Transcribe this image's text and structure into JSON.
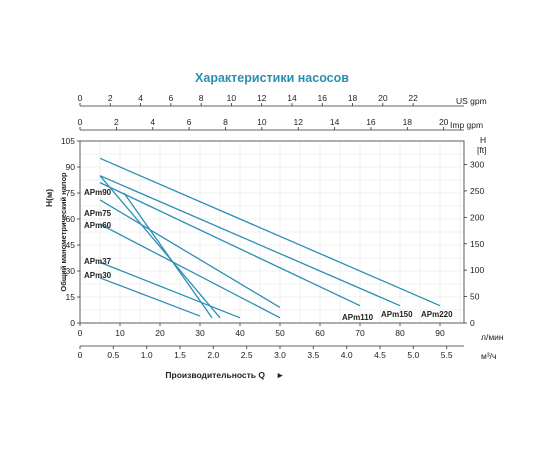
{
  "chart_data": {
    "type": "line",
    "title": "Характеристики насосов",
    "xlabel": "Производительность Q",
    "ylabel": "Общий манометрический напор",
    "ylabel_unit": "H(м)",
    "x_unit": "л/мин",
    "x_m3h_unit": "м³/ч",
    "us_gpm_unit": "US gpm",
    "imp_gpm_unit": "Imp gpm",
    "h_ft_unit": "H",
    "h_ft_unit2": "[ft]",
    "xlim": [
      0,
      96
    ],
    "ylim": [
      0,
      105
    ],
    "grid": true,
    "x_ticks": [
      "0",
      "10",
      "20",
      "30",
      "40",
      "50",
      "60",
      "70",
      "80",
      "90"
    ],
    "y_ticks": [
      "0",
      "15",
      "30",
      "45",
      "60",
      "75",
      "90",
      "105"
    ],
    "ft_ticks": [
      "0",
      "50",
      "100",
      "150",
      "200",
      "250",
      "300"
    ],
    "m3h_ticks": [
      "0",
      "0.5",
      "1.0",
      "1.5",
      "2.0",
      "2.5",
      "3.0",
      "3.5",
      "4.0",
      "4.5",
      "5.0",
      "5.5"
    ],
    "us_gpm_ticks": [
      "0",
      "2",
      "4",
      "6",
      "8",
      "10",
      "12",
      "14",
      "16",
      "18",
      "20",
      "22"
    ],
    "imp_gpm_ticks": [
      "0",
      "2",
      "4",
      "6",
      "8",
      "10",
      "12",
      "14",
      "16",
      "18",
      "20"
    ],
    "series": [
      {
        "name": "APm30",
        "x": [
          5,
          30
        ],
        "y": [
          26,
          4
        ]
      },
      {
        "name": "APm37",
        "x": [
          5,
          40
        ],
        "y": [
          35,
          3
        ]
      },
      {
        "name": "APm60",
        "x": [
          5,
          50
        ],
        "y": [
          57,
          3
        ]
      },
      {
        "name": "APm75",
        "x": [
          5,
          50
        ],
        "y": [
          71,
          9
        ]
      },
      {
        "name": "APm90",
        "x": [
          5,
          35
        ],
        "y": [
          85,
          3
        ]
      },
      {
        "name": "APm90",
        "x": [
          11,
          33
        ],
        "y": [
          75,
          3
        ]
      },
      {
        "name": "APm110",
        "x": [
          5,
          70
        ],
        "y": [
          81,
          10
        ]
      },
      {
        "name": "APm150",
        "x": [
          5,
          80
        ],
        "y": [
          85,
          10
        ]
      },
      {
        "name": "APm220",
        "x": [
          5,
          90
        ],
        "y": [
          95,
          10
        ]
      }
    ],
    "series_labels": [
      "APm90",
      "APm75",
      "APm60",
      "APm37",
      "APm30",
      "APm110",
      "APm150",
      "APm220"
    ],
    "line_color": "#2b8fb3"
  }
}
